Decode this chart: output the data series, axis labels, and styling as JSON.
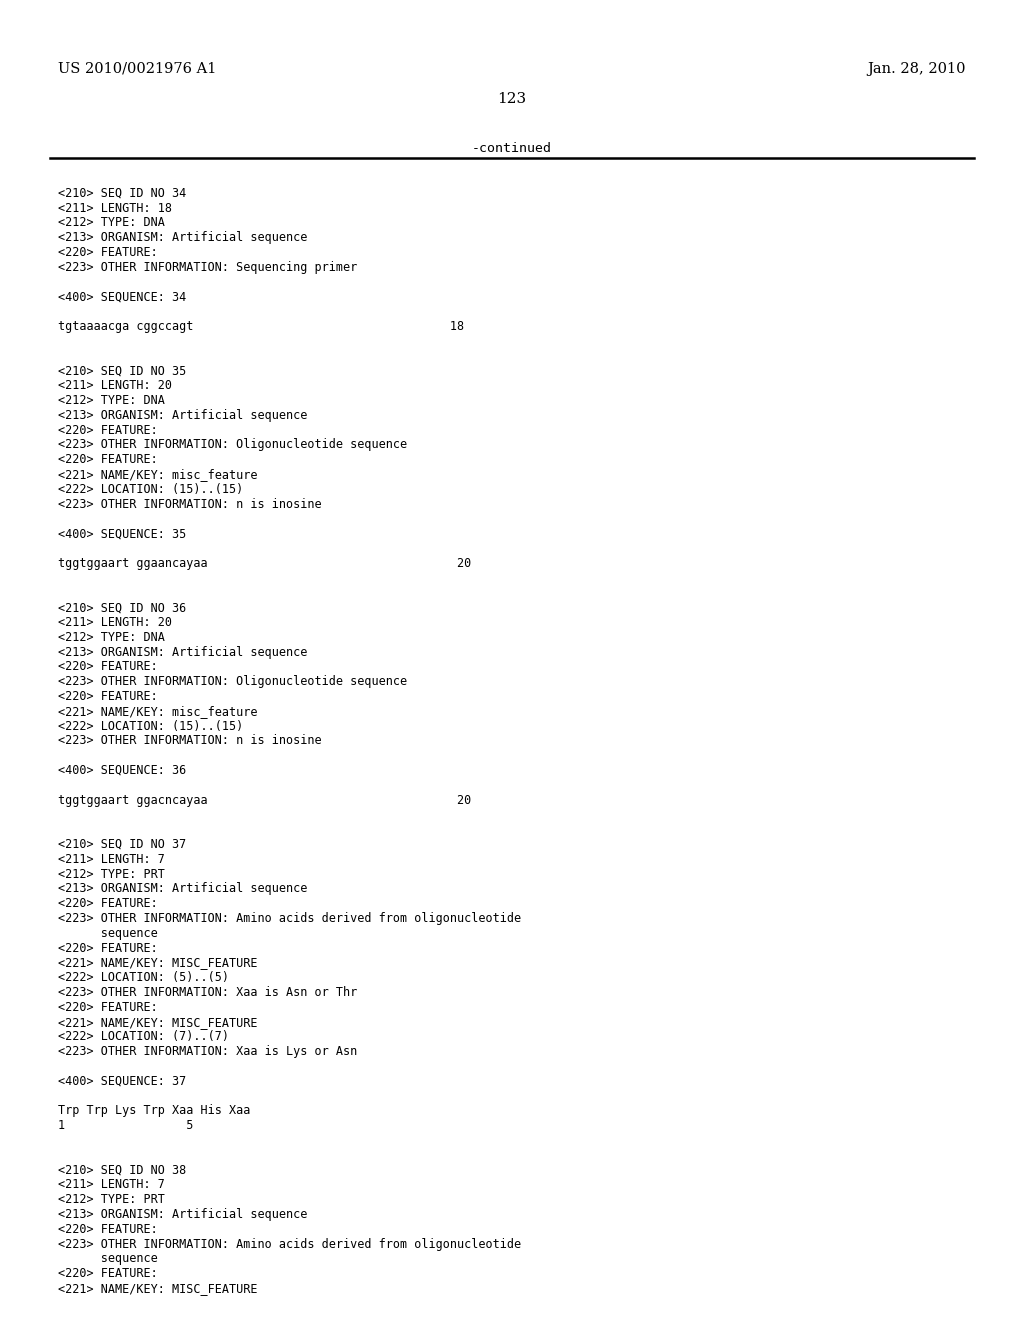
{
  "header_left": "US 2010/0021976 A1",
  "header_right": "Jan. 28, 2010",
  "page_number": "123",
  "continued_text": "-continued",
  "background_color": "#ffffff",
  "text_color": "#000000",
  "font_size_header": 10.5,
  "font_size_body": 9.5,
  "font_size_page": 11.0,
  "font_size_content": 8.5,
  "content_lines": [
    "",
    "<210> SEQ ID NO 34",
    "<211> LENGTH: 18",
    "<212> TYPE: DNA",
    "<213> ORGANISM: Artificial sequence",
    "<220> FEATURE:",
    "<223> OTHER INFORMATION: Sequencing primer",
    "",
    "<400> SEQUENCE: 34",
    "",
    "tgtaaaacga cggccagt                                    18",
    "",
    "",
    "<210> SEQ ID NO 35",
    "<211> LENGTH: 20",
    "<212> TYPE: DNA",
    "<213> ORGANISM: Artificial sequence",
    "<220> FEATURE:",
    "<223> OTHER INFORMATION: Oligonucleotide sequence",
    "<220> FEATURE:",
    "<221> NAME/KEY: misc_feature",
    "<222> LOCATION: (15)..(15)",
    "<223> OTHER INFORMATION: n is inosine",
    "",
    "<400> SEQUENCE: 35",
    "",
    "tggtggaart ggaancayaa                                   20",
    "",
    "",
    "<210> SEQ ID NO 36",
    "<211> LENGTH: 20",
    "<212> TYPE: DNA",
    "<213> ORGANISM: Artificial sequence",
    "<220> FEATURE:",
    "<223> OTHER INFORMATION: Oligonucleotide sequence",
    "<220> FEATURE:",
    "<221> NAME/KEY: misc_feature",
    "<222> LOCATION: (15)..(15)",
    "<223> OTHER INFORMATION: n is inosine",
    "",
    "<400> SEQUENCE: 36",
    "",
    "tggtggaart ggacncayaa                                   20",
    "",
    "",
    "<210> SEQ ID NO 37",
    "<211> LENGTH: 7",
    "<212> TYPE: PRT",
    "<213> ORGANISM: Artificial sequence",
    "<220> FEATURE:",
    "<223> OTHER INFORMATION: Amino acids derived from oligonucleotide",
    "      sequence",
    "<220> FEATURE:",
    "<221> NAME/KEY: MISC_FEATURE",
    "<222> LOCATION: (5)..(5)",
    "<223> OTHER INFORMATION: Xaa is Asn or Thr",
    "<220> FEATURE:",
    "<221> NAME/KEY: MISC_FEATURE",
    "<222> LOCATION: (7)..(7)",
    "<223> OTHER INFORMATION: Xaa is Lys or Asn",
    "",
    "<400> SEQUENCE: 37",
    "",
    "Trp Trp Lys Trp Xaa His Xaa",
    "1                 5",
    "",
    "",
    "<210> SEQ ID NO 38",
    "<211> LENGTH: 7",
    "<212> TYPE: PRT",
    "<213> ORGANISM: Artificial sequence",
    "<220> FEATURE:",
    "<223> OTHER INFORMATION: Amino acids derived from oligonucleotide",
    "      sequence",
    "<220> FEATURE:",
    "<221> NAME/KEY: MISC_FEATURE"
  ]
}
